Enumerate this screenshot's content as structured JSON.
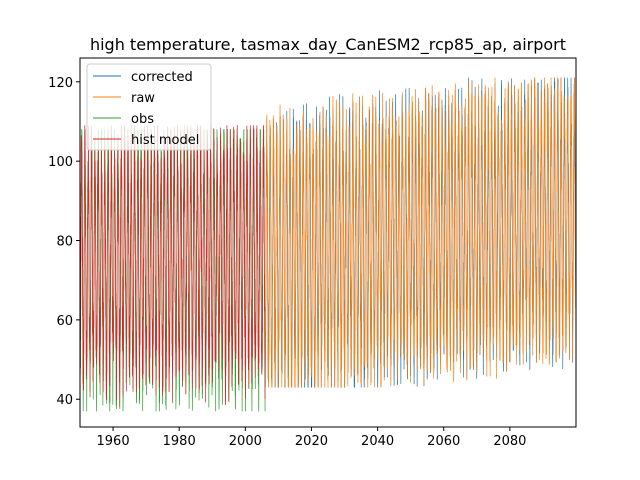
{
  "chart_data": {
    "type": "line",
    "title": "high temperature, tasmax_day_CanESM2_rcp85_ap, airport",
    "xlabel": "",
    "ylabel": "",
    "xlim": [
      1950,
      2100
    ],
    "ylim": [
      33,
      126
    ],
    "x_ticks": [
      1960,
      1980,
      2000,
      2020,
      2040,
      2060,
      2080
    ],
    "y_ticks": [
      40,
      60,
      80,
      100,
      120
    ],
    "grid": false,
    "legend_position": "top-left",
    "series": [
      {
        "name": "corrected",
        "color": "#1f77b4",
        "x_range": [
          2006,
          2100
        ],
        "summer_peak_trend": [
          [
            2006,
            104
          ],
          [
            2050,
            110
          ],
          [
            2100,
            115
          ]
        ],
        "winter_trough_trend": [
          [
            2006,
            46
          ],
          [
            2050,
            52
          ],
          [
            2100,
            58
          ]
        ],
        "max_value": 121,
        "min_value": 43
      },
      {
        "name": "raw",
        "color": "#ff7f0e",
        "x_range": [
          2006,
          2100
        ],
        "summer_peak_trend": [
          [
            2006,
            104
          ],
          [
            2050,
            110
          ],
          [
            2100,
            115
          ]
        ],
        "winter_trough_trend": [
          [
            2006,
            46
          ],
          [
            2050,
            52
          ],
          [
            2100,
            58
          ]
        ],
        "max_value": 121,
        "min_value": 43
      },
      {
        "name": "obs",
        "color": "#2ca02c",
        "x_range": [
          1950,
          2006
        ],
        "summer_peak_trend": [
          [
            1950,
            103
          ],
          [
            2006,
            104
          ]
        ],
        "winter_trough_trend": [
          [
            1950,
            47
          ],
          [
            2006,
            47
          ]
        ],
        "max_value": 108,
        "min_value": 37
      },
      {
        "name": "hist model",
        "color": "#d62728",
        "x_range": [
          1950,
          2006
        ],
        "summer_peak_trend": [
          [
            1950,
            102
          ],
          [
            2006,
            103
          ]
        ],
        "winter_trough_trend": [
          [
            1950,
            48
          ],
          [
            2006,
            48
          ]
        ],
        "max_value": 109,
        "min_value": 38
      }
    ]
  }
}
